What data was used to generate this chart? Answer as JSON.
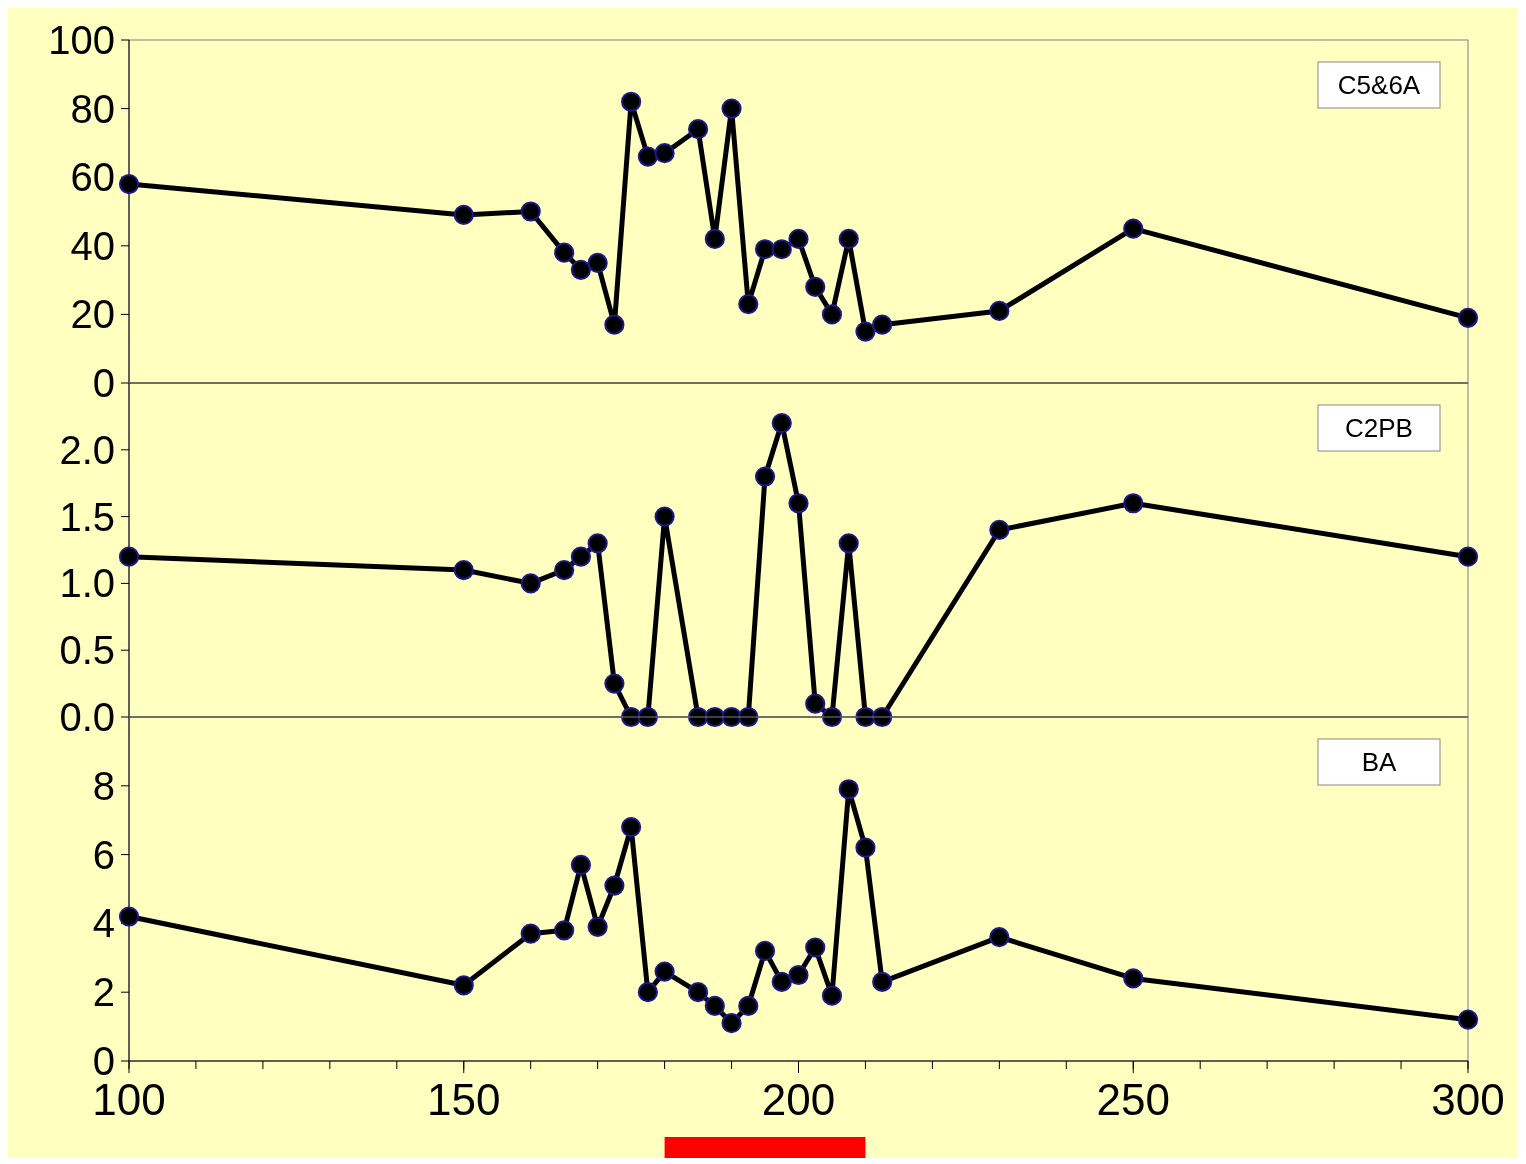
{
  "chart_data": [
    {
      "type": "line",
      "x": [
        100,
        150,
        160,
        165,
        167.5,
        170,
        172.5,
        175,
        177.5,
        180,
        185,
        187.5,
        190,
        192.5,
        195,
        197.5,
        200,
        202.5,
        205,
        207.5,
        210,
        212.5,
        230,
        250,
        300
      ],
      "series": [
        {
          "name": "C5&6A",
          "color": "#000000",
          "values": [
            58,
            49,
            50,
            38,
            33,
            35,
            17,
            82,
            66,
            67,
            74,
            42,
            80,
            23,
            39,
            39,
            42,
            28,
            20,
            42,
            15,
            17,
            21,
            45,
            19
          ]
        }
      ],
      "xlim": [
        100,
        300
      ],
      "ylim": [
        0,
        100
      ],
      "yticks": [
        0,
        20,
        40,
        60,
        80,
        100
      ],
      "tick_labels": "y",
      "legend": "top right",
      "marker": "circle",
      "grid": false
    },
    {
      "type": "line",
      "x": [
        100,
        150,
        160,
        165,
        167.5,
        170,
        172.5,
        175,
        177.5,
        180,
        185,
        187.5,
        190,
        192.5,
        195,
        197.5,
        200,
        202.5,
        205,
        207.5,
        210,
        212.5,
        230,
        250,
        300
      ],
      "series": [
        {
          "name": "C2PB",
          "color": "#000000",
          "values": [
            1.2,
            1.1,
            1.0,
            1.1,
            1.2,
            1.3,
            0.25,
            0,
            0,
            1.5,
            0,
            0,
            0,
            0,
            1.8,
            2.2,
            1.6,
            0.1,
            0,
            1.3,
            0,
            0,
            1.4,
            1.6,
            1.2
          ]
        }
      ],
      "xlim": [
        100,
        300
      ],
      "ylim": [
        0,
        2.5
      ],
      "yticks": [
        {
          "value": 0,
          "label": "0.0"
        },
        {
          "value": 0.5,
          "label": "0.5"
        },
        {
          "value": 1,
          "label": "1.0"
        },
        {
          "value": 1.5,
          "label": "1.5"
        },
        {
          "value": 2,
          "label": "2.0"
        }
      ],
      "tick_labels": "y",
      "legend": "top right",
      "marker": "circle",
      "grid": false
    },
    {
      "type": "line",
      "x": [
        100,
        150,
        160,
        165,
        167.5,
        170,
        172.5,
        175,
        177.5,
        180,
        185,
        187.5,
        190,
        192.5,
        195,
        197.5,
        200,
        202.5,
        205,
        207.5,
        210,
        212.5,
        230,
        250,
        300
      ],
      "series": [
        {
          "name": "BA",
          "color": "#000000",
          "values": [
            4.2,
            2.2,
            3.7,
            3.8,
            5.7,
            3.9,
            5.1,
            6.8,
            2.0,
            2.6,
            2.0,
            1.6,
            1.1,
            1.6,
            3.2,
            2.3,
            2.5,
            3.3,
            1.9,
            7.9,
            6.2,
            2.3,
            3.6,
            2.4,
            1.2
          ]
        }
      ],
      "xlim": [
        100,
        300
      ],
      "xticks": [
        100,
        150,
        200,
        250,
        300
      ],
      "ylim": [
        0,
        10
      ],
      "yticks": [
        0,
        2,
        4,
        6,
        8
      ],
      "legend": "top right",
      "marker": "circle",
      "grid": false
    }
  ]
}
